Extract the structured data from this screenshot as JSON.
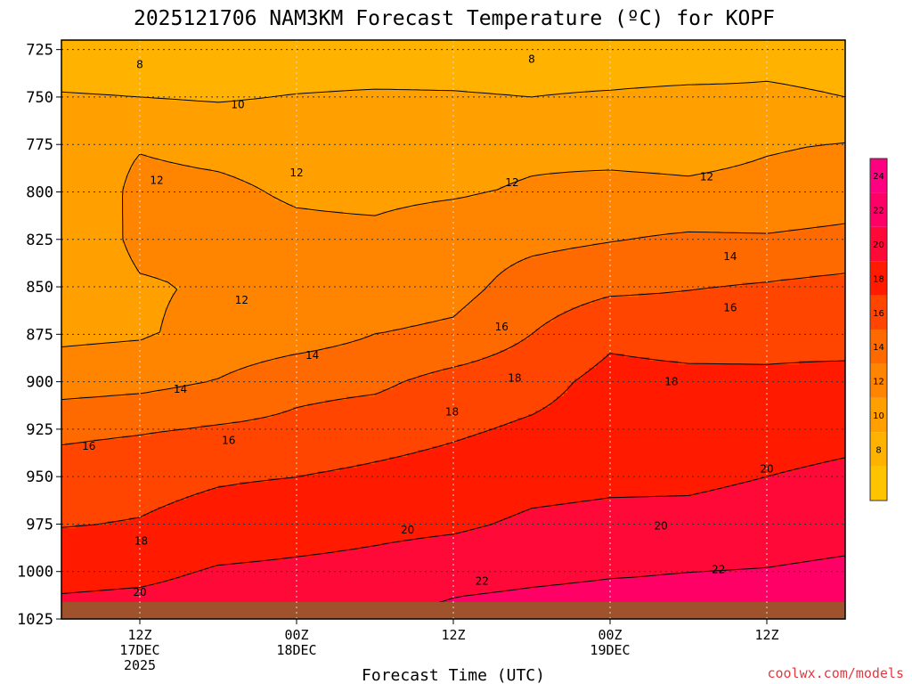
{
  "chart_data": {
    "type": "heatmap",
    "title": "2025121706 NAM3KM Forecast Temperature (ºC) for KOPF",
    "xlabel": "Forecast Time (UTC)",
    "ylabel": "",
    "credit": "coolwx.com/models",
    "x_ticks": [
      {
        "line1": "12Z",
        "line2": "17DEC",
        "line3": "2025",
        "hour": 6
      },
      {
        "line1": "00Z",
        "line2": "18DEC",
        "line3": "",
        "hour": 18
      },
      {
        "line1": "12Z",
        "line2": "",
        "line3": "",
        "hour": 30
      },
      {
        "line1": "00Z",
        "line2": "19DEC",
        "line3": "",
        "hour": 42
      },
      {
        "line1": "12Z",
        "line2": "",
        "line3": "",
        "hour": 54
      }
    ],
    "xlim": [
      0,
      60
    ],
    "y_ticks": [
      "725",
      "750",
      "775",
      "800",
      "825",
      "850",
      "875",
      "900",
      "925",
      "950",
      "975",
      "1000",
      "1025"
    ],
    "ylim": [
      1025,
      720
    ],
    "grid": true,
    "ground_color": "#a0522d",
    "levels": [
      725,
      750,
      775,
      800,
      825,
      850,
      875,
      900,
      925,
      950,
      975,
      1000,
      1015
    ],
    "hours": [
      0,
      6,
      12,
      18,
      24,
      30,
      36,
      42,
      48,
      54,
      60
    ],
    "temperature": [
      [
        8.3,
        8.2,
        8.4,
        8.6,
        8.5,
        8.7,
        8.6,
        8.2,
        8.0,
        9.2,
        9.0
      ],
      [
        10.2,
        10.0,
        9.8,
        10.1,
        10.3,
        10.2,
        10.0,
        10.3,
        10.7,
        10.4,
        10.0
      ],
      [
        11.2,
        11.9,
        11.6,
        11.4,
        11.4,
        11.4,
        11.6,
        11.3,
        11.2,
        11.8,
        12.1
      ],
      [
        10.6,
        12.4,
        12.3,
        11.8,
        11.6,
        11.8,
        12.2,
        12.6,
        12.4,
        12.6,
        13.0
      ],
      [
        10.2,
        12.5,
        12.6,
        12.4,
        12.4,
        13.1,
        13.5,
        13.9,
        14.3,
        14.2,
        14.5
      ],
      [
        10.4,
        11.8,
        12.2,
        12.2,
        12.8,
        13.3,
        14.9,
        15.6,
        15.9,
        16.2,
        16.6
      ],
      [
        11.6,
        11.8,
        12.6,
        13.0,
        14.0,
        14.4,
        16.0,
        17.6,
        17.2,
        17.3,
        17.0
      ],
      [
        13.1,
        13.4,
        14.1,
        15.4,
        15.6,
        16.7,
        17.3,
        18.6,
        18.5,
        18.4,
        18.8
      ],
      [
        15.5,
        15.8,
        16.2,
        16.5,
        17.1,
        17.7,
        18.3,
        18.9,
        18.9,
        19.1,
        19.4
      ],
      [
        17.0,
        17.4,
        17.8,
        18.0,
        18.4,
        18.8,
        19.4,
        19.6,
        19.6,
        20.0,
        20.4
      ],
      [
        17.9,
        18.1,
        18.7,
        19.1,
        19.5,
        19.7,
        20.3,
        20.5,
        20.6,
        20.9,
        21.2
      ],
      [
        19.3,
        19.5,
        20.2,
        20.4,
        20.6,
        21.1,
        21.5,
        21.8,
        22.0,
        22.1,
        22.4
      ],
      [
        20.2,
        20.4,
        20.8,
        21.2,
        21.6,
        22.1,
        22.4,
        22.6,
        22.5,
        22.6,
        22.8
      ]
    ],
    "contour_labels": [
      {
        "value": "8",
        "hour": 6.0,
        "level": 733
      },
      {
        "value": "8",
        "hour": 36.0,
        "level": 730
      },
      {
        "value": "10",
        "hour": 13.5,
        "level": 754
      },
      {
        "value": "12",
        "hour": 7.3,
        "level": 794
      },
      {
        "value": "12",
        "hour": 18.0,
        "level": 790
      },
      {
        "value": "12",
        "hour": 34.5,
        "level": 795
      },
      {
        "value": "12",
        "hour": 49.4,
        "level": 792
      },
      {
        "value": "14",
        "hour": 51.2,
        "level": 834
      },
      {
        "value": "12",
        "hour": 13.8,
        "level": 857
      },
      {
        "value": "16",
        "hour": 33.7,
        "level": 871
      },
      {
        "value": "16",
        "hour": 51.2,
        "level": 861
      },
      {
        "value": "14",
        "hour": 19.2,
        "level": 886
      },
      {
        "value": "18",
        "hour": 34.7,
        "level": 898
      },
      {
        "value": "18",
        "hour": 46.7,
        "level": 900
      },
      {
        "value": "14",
        "hour": 9.1,
        "level": 904
      },
      {
        "value": "18",
        "hour": 29.9,
        "level": 916
      },
      {
        "value": "16",
        "hour": 12.8,
        "level": 931
      },
      {
        "value": "16",
        "hour": 2.1,
        "level": 934
      },
      {
        "value": "20",
        "hour": 54.0,
        "level": 946
      },
      {
        "value": "20",
        "hour": 45.9,
        "level": 976
      },
      {
        "value": "20",
        "hour": 26.5,
        "level": 978
      },
      {
        "value": "18",
        "hour": 6.1,
        "level": 984
      },
      {
        "value": "22",
        "hour": 50.3,
        "level": 999
      },
      {
        "value": "22",
        "hour": 32.2,
        "level": 1005
      },
      {
        "value": "20",
        "hour": 6.0,
        "level": 1011
      }
    ],
    "colorbar": {
      "ticks": [
        "8",
        "10",
        "12",
        "14",
        "16",
        "18",
        "20",
        "22",
        "24"
      ],
      "bands": [
        {
          "min": 6,
          "max": 8,
          "color": "#ffc400"
        },
        {
          "min": 8,
          "max": 10,
          "color": "#ffb300"
        },
        {
          "min": 10,
          "max": 12,
          "color": "#ffa000"
        },
        {
          "min": 12,
          "max": 14,
          "color": "#ff8400"
        },
        {
          "min": 14,
          "max": 16,
          "color": "#ff6a00"
        },
        {
          "min": 16,
          "max": 18,
          "color": "#ff4500"
        },
        {
          "min": 18,
          "max": 20,
          "color": "#ff1a00"
        },
        {
          "min": 20,
          "max": 22,
          "color": "#ff0a38"
        },
        {
          "min": 22,
          "max": 24,
          "color": "#ff0066"
        },
        {
          "min": 24,
          "max": 26,
          "color": "#ff0080"
        }
      ]
    }
  }
}
